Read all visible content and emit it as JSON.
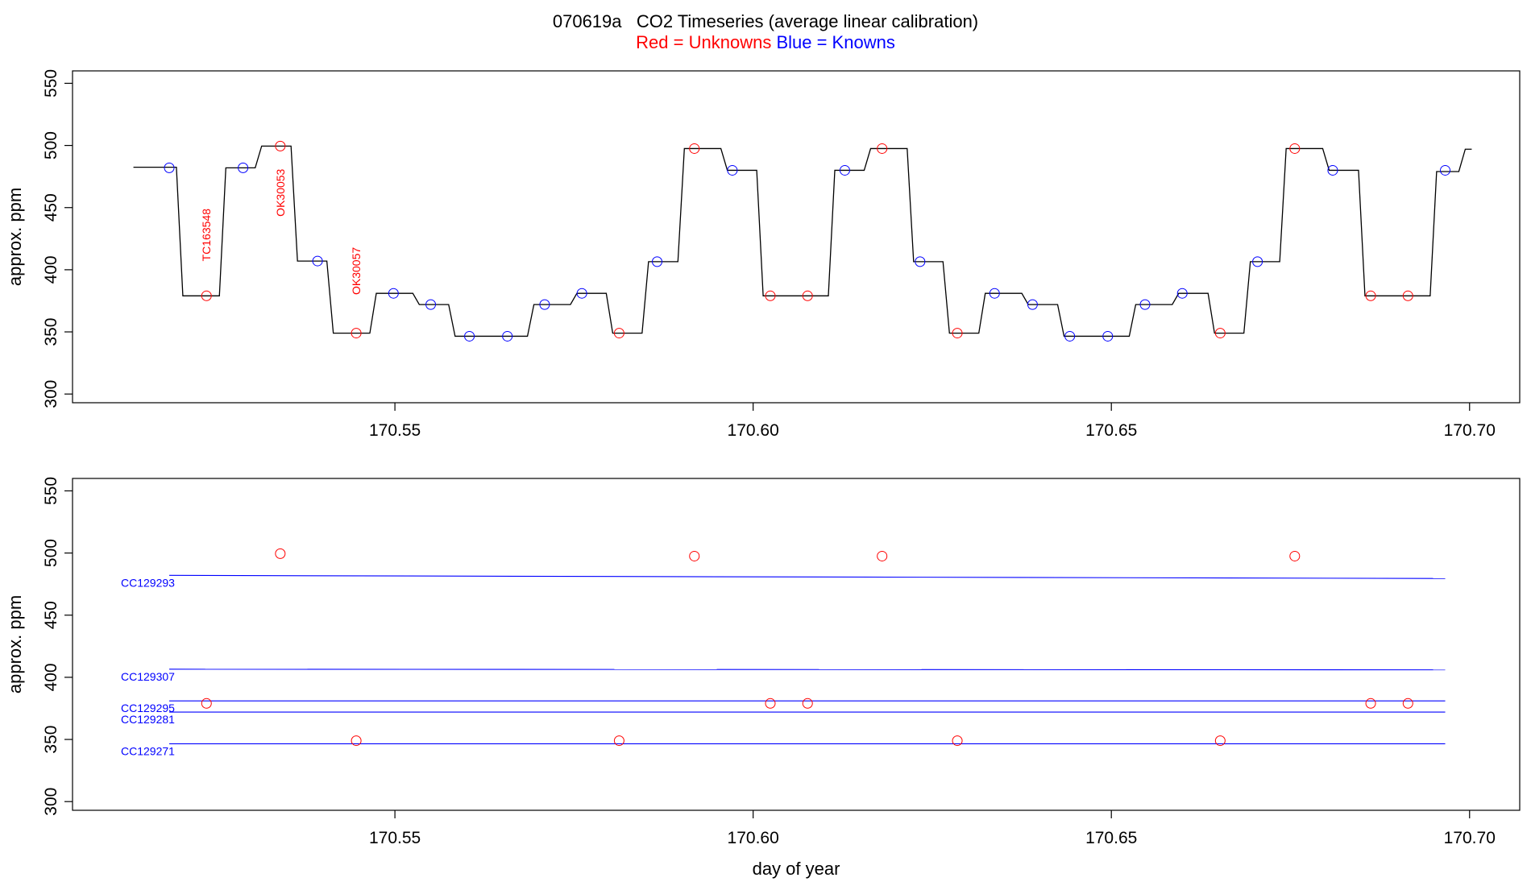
{
  "chart_data": {
    "title": "070619a   CO2 Timeseries (average linear calibration)",
    "subtitle": [
      {
        "text": "Red = Unknowns",
        "color": "#ff0000"
      },
      {
        "text": " ",
        "color": "#000000"
      },
      {
        "text": "Blue = Knowns",
        "color": "#0000ff"
      }
    ],
    "colors": {
      "unknown": "#ff0000",
      "known": "#0000ff",
      "trace": "#000000"
    },
    "panels": [
      {
        "type": "line",
        "ylabel": "approx. ppm",
        "xlabel": "",
        "xlim": [
          170.505,
          170.707
        ],
        "ylim": [
          293,
          560
        ],
        "xticks": [
          "170.55",
          "170.60",
          "170.65",
          "170.70"
        ],
        "yticks": [
          "300",
          "350",
          "400",
          "450",
          "500",
          "550"
        ],
        "trace": {
          "name": "",
          "segments": [
            {
              "x0": 170.5135,
              "x1": 170.5195,
              "y": 482.5
            },
            {
              "x0": 170.5195,
              "x1": 170.5255,
              "y": 379
            },
            {
              "x0": 170.5255,
              "x1": 170.5305,
              "y": 482
            },
            {
              "x0": 170.5305,
              "x1": 170.5355,
              "y": 499.5
            },
            {
              "x0": 170.5355,
              "x1": 170.5405,
              "y": 407
            },
            {
              "x0": 170.5405,
              "x1": 170.5465,
              "y": 349
            },
            {
              "x0": 170.5465,
              "x1": 170.5525,
              "y": 381
            },
            {
              "x0": 170.5525,
              "x1": 170.5575,
              "y": 372
            },
            {
              "x0": 170.5575,
              "x1": 170.5685,
              "y": 346.5
            },
            {
              "x0": 170.5685,
              "x1": 170.5745,
              "y": 372
            },
            {
              "x0": 170.5745,
              "x1": 170.5795,
              "y": 381
            },
            {
              "x0": 170.5795,
              "x1": 170.5845,
              "y": 349
            },
            {
              "x0": 170.5845,
              "x1": 170.5895,
              "y": 406.5
            },
            {
              "x0": 170.5895,
              "x1": 170.5955,
              "y": 497.5
            },
            {
              "x0": 170.5955,
              "x1": 170.6005,
              "y": 480
            },
            {
              "x0": 170.6005,
              "x1": 170.6105,
              "y": 379
            },
            {
              "x0": 170.6105,
              "x1": 170.6155,
              "y": 480
            },
            {
              "x0": 170.6155,
              "x1": 170.6215,
              "y": 497.5
            },
            {
              "x0": 170.6215,
              "x1": 170.6265,
              "y": 406.5
            },
            {
              "x0": 170.6265,
              "x1": 170.6315,
              "y": 349
            },
            {
              "x0": 170.6315,
              "x1": 170.6375,
              "y": 381
            },
            {
              "x0": 170.6375,
              "x1": 170.6425,
              "y": 372
            },
            {
              "x0": 170.6425,
              "x1": 170.6525,
              "y": 346.5
            },
            {
              "x0": 170.6525,
              "x1": 170.6585,
              "y": 372
            },
            {
              "x0": 170.6585,
              "x1": 170.6635,
              "y": 381
            },
            {
              "x0": 170.6635,
              "x1": 170.6685,
              "y": 349
            },
            {
              "x0": 170.6685,
              "x1": 170.6735,
              "y": 406.5
            },
            {
              "x0": 170.6735,
              "x1": 170.6795,
              "y": 497.5
            },
            {
              "x0": 170.6795,
              "x1": 170.6845,
              "y": 480
            },
            {
              "x0": 170.6845,
              "x1": 170.6945,
              "y": 379
            },
            {
              "x0": 170.6945,
              "x1": 170.6985,
              "y": 479
            },
            {
              "x0": 170.6985,
              "x1": 170.7003,
              "y": 497
            }
          ]
        },
        "points": [
          {
            "x": 170.5185,
            "y": 482,
            "kind": "known"
          },
          {
            "x": 170.5237,
            "y": 379,
            "kind": "unknown"
          },
          {
            "x": 170.5288,
            "y": 482,
            "kind": "known"
          },
          {
            "x": 170.534,
            "y": 499.5,
            "kind": "unknown"
          },
          {
            "x": 170.5392,
            "y": 407,
            "kind": "known"
          },
          {
            "x": 170.5446,
            "y": 349,
            "kind": "unknown"
          },
          {
            "x": 170.5498,
            "y": 381,
            "kind": "known"
          },
          {
            "x": 170.555,
            "y": 372,
            "kind": "known"
          },
          {
            "x": 170.5604,
            "y": 346.5,
            "kind": "known"
          },
          {
            "x": 170.5657,
            "y": 346.5,
            "kind": "known"
          },
          {
            "x": 170.5709,
            "y": 372,
            "kind": "known"
          },
          {
            "x": 170.5761,
            "y": 381,
            "kind": "known"
          },
          {
            "x": 170.5813,
            "y": 349,
            "kind": "unknown"
          },
          {
            "x": 170.5866,
            "y": 406.5,
            "kind": "known"
          },
          {
            "x": 170.5918,
            "y": 497.5,
            "kind": "unknown"
          },
          {
            "x": 170.5971,
            "y": 480,
            "kind": "known"
          },
          {
            "x": 170.6024,
            "y": 379,
            "kind": "unknown"
          },
          {
            "x": 170.6076,
            "y": 379,
            "kind": "unknown"
          },
          {
            "x": 170.6128,
            "y": 480,
            "kind": "known"
          },
          {
            "x": 170.618,
            "y": 497.5,
            "kind": "unknown"
          },
          {
            "x": 170.6233,
            "y": 406.5,
            "kind": "known"
          },
          {
            "x": 170.6285,
            "y": 349,
            "kind": "unknown"
          },
          {
            "x": 170.6337,
            "y": 381,
            "kind": "known"
          },
          {
            "x": 170.639,
            "y": 372,
            "kind": "known"
          },
          {
            "x": 170.6442,
            "y": 346.5,
            "kind": "known"
          },
          {
            "x": 170.6495,
            "y": 346.5,
            "kind": "known"
          },
          {
            "x": 170.6547,
            "y": 372,
            "kind": "known"
          },
          {
            "x": 170.6599,
            "y": 381,
            "kind": "known"
          },
          {
            "x": 170.6652,
            "y": 349,
            "kind": "unknown"
          },
          {
            "x": 170.6704,
            "y": 406.5,
            "kind": "known"
          },
          {
            "x": 170.6756,
            "y": 497.5,
            "kind": "unknown"
          },
          {
            "x": 170.6809,
            "y": 480,
            "kind": "known"
          },
          {
            "x": 170.6862,
            "y": 379,
            "kind": "unknown"
          },
          {
            "x": 170.6914,
            "y": 379,
            "kind": "unknown"
          },
          {
            "x": 170.6966,
            "y": 480,
            "kind": "known"
          }
        ],
        "annotations": [
          {
            "text": "TC163548",
            "x": 170.5237,
            "y": 428
          },
          {
            "text": "OK30053",
            "x": 170.534,
            "y": 462
          },
          {
            "text": "OK30057",
            "x": 170.5446,
            "y": 399
          }
        ]
      },
      {
        "type": "scatter",
        "ylabel": "approx. ppm",
        "xlabel": "day of year",
        "xlim": [
          170.505,
          170.707
        ],
        "ylim": [
          293,
          560
        ],
        "xticks": [
          "170.55",
          "170.60",
          "170.65",
          "170.70"
        ],
        "yticks": [
          "300",
          "350",
          "400",
          "450",
          "500",
          "550"
        ],
        "standards": [
          {
            "name": "CC129293",
            "x": [
              170.5185,
              170.6966
            ],
            "y": [
              482,
              479.5
            ]
          },
          {
            "name": "CC129307",
            "x": [
              170.5185,
              170.6966
            ],
            "y": [
              406.5,
              406
            ]
          },
          {
            "name": "CC129295",
            "x": [
              170.5185,
              170.6966
            ],
            "y": [
              381,
              381
            ]
          },
          {
            "name": "CC129281",
            "x": [
              170.5185,
              170.6966
            ],
            "y": [
              372,
              372
            ]
          },
          {
            "name": "CC129271",
            "x": [
              170.5185,
              170.6966
            ],
            "y": [
              346.5,
              346.5
            ]
          }
        ],
        "points": [
          {
            "x": 170.5237,
            "y": 379
          },
          {
            "x": 170.534,
            "y": 499.5
          },
          {
            "x": 170.5446,
            "y": 349
          },
          {
            "x": 170.5813,
            "y": 349
          },
          {
            "x": 170.5918,
            "y": 497.5
          },
          {
            "x": 170.6024,
            "y": 379
          },
          {
            "x": 170.6076,
            "y": 379
          },
          {
            "x": 170.618,
            "y": 497.5
          },
          {
            "x": 170.6285,
            "y": 349
          },
          {
            "x": 170.6652,
            "y": 349
          },
          {
            "x": 170.6756,
            "y": 497.5
          },
          {
            "x": 170.6862,
            "y": 379
          },
          {
            "x": 170.6914,
            "y": 379
          }
        ]
      }
    ]
  }
}
